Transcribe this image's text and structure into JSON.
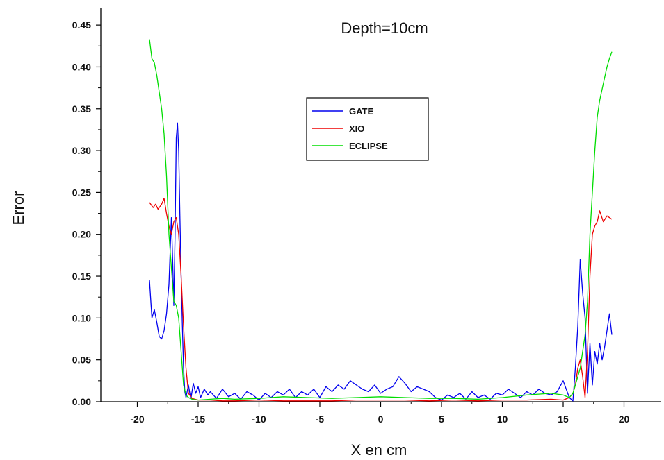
{
  "chart_data": {
    "type": "line",
    "title": "Depth=10cm",
    "xlabel": "X en cm",
    "ylabel": "Error",
    "xlim": [
      -23,
      23
    ],
    "ylim": [
      0,
      0.47
    ],
    "xticks": [
      -20,
      -15,
      -10,
      -5,
      0,
      5,
      10,
      15,
      20
    ],
    "xtick_labels": [
      "-20",
      "-15",
      "-10",
      "-5",
      "0",
      "5",
      "10",
      "15",
      "20"
    ],
    "yticks": [
      0.0,
      0.05,
      0.1,
      0.15,
      0.2,
      0.25,
      0.3,
      0.35,
      0.4,
      0.45
    ],
    "ytick_labels": [
      "0.00",
      "0.05",
      "0.10",
      "0.15",
      "0.20",
      "0.25",
      "0.30",
      "0.35",
      "0.40",
      "0.45"
    ],
    "grid": false,
    "legend_position": "top-center",
    "series": [
      {
        "name": "GATE",
        "color": "#0000ee",
        "x": [
          -19,
          -18.8,
          -18.6,
          -18.4,
          -18.2,
          -18,
          -17.8,
          -17.6,
          -17.4,
          -17.2,
          -17.1,
          -17,
          -16.9,
          -16.8,
          -16.7,
          -16.6,
          -16.5,
          -16.4,
          -16.3,
          -16.2,
          -16.1,
          -16,
          -15.8,
          -15.6,
          -15.4,
          -15.2,
          -15,
          -14.8,
          -14.5,
          -14.2,
          -14,
          -13.5,
          -13,
          -12.5,
          -12,
          -11.5,
          -11,
          -10.5,
          -10,
          -9.5,
          -9,
          -8.5,
          -8,
          -7.5,
          -7,
          -6.5,
          -6,
          -5.5,
          -5,
          -4.5,
          -4,
          -3.5,
          -3,
          -2.5,
          -2,
          -1.5,
          -1,
          -0.5,
          0,
          0.5,
          1,
          1.5,
          2,
          2.5,
          3,
          3.5,
          4,
          4.5,
          5,
          5.5,
          6,
          6.5,
          7,
          7.5,
          8,
          8.5,
          9,
          9.5,
          10,
          10.5,
          11,
          11.5,
          12,
          12.5,
          13,
          13.5,
          14,
          14.5,
          15,
          15.5,
          15.8,
          16,
          16.2,
          16.4,
          16.6,
          16.8,
          17,
          17.2,
          17.4,
          17.6,
          17.8,
          18,
          18.2,
          18.4,
          18.6,
          18.8,
          19
        ],
        "y": [
          0.145,
          0.1,
          0.11,
          0.095,
          0.078,
          0.075,
          0.085,
          0.105,
          0.14,
          0.22,
          0.17,
          0.115,
          0.2,
          0.315,
          0.333,
          0.3,
          0.22,
          0.15,
          0.09,
          0.04,
          0.012,
          0.005,
          0.02,
          0.003,
          0.022,
          0.01,
          0.018,
          0.005,
          0.015,
          0.008,
          0.012,
          0.004,
          0.015,
          0.006,
          0.01,
          0.003,
          0.012,
          0.008,
          0.002,
          0.01,
          0.005,
          0.012,
          0.008,
          0.015,
          0.005,
          0.012,
          0.008,
          0.015,
          0.005,
          0.018,
          0.012,
          0.02,
          0.015,
          0.025,
          0.02,
          0.015,
          0.012,
          0.02,
          0.01,
          0.015,
          0.018,
          0.03,
          0.022,
          0.012,
          0.018,
          0.015,
          0.012,
          0.005,
          0.002,
          0.008,
          0.005,
          0.01,
          0.003,
          0.012,
          0.005,
          0.008,
          0.003,
          0.01,
          0.008,
          0.015,
          0.01,
          0.005,
          0.012,
          0.008,
          0.015,
          0.01,
          0.008,
          0.012,
          0.025,
          0.005,
          0.001,
          0.04,
          0.09,
          0.17,
          0.13,
          0.1,
          0.01,
          0.07,
          0.02,
          0.06,
          0.045,
          0.07,
          0.05,
          0.065,
          0.085,
          0.105,
          0.08
        ]
      },
      {
        "name": "XIO",
        "color": "#ee0000",
        "x": [
          -19,
          -18.7,
          -18.5,
          -18.3,
          -18,
          -17.8,
          -17.6,
          -17.4,
          -17.2,
          -17,
          -16.8,
          -16.6,
          -16.4,
          -16.2,
          -16,
          -15.8,
          -15.5,
          -15,
          -14,
          -13,
          -12,
          -10,
          -8,
          -6,
          -4,
          -2,
          0,
          2,
          4,
          6,
          8,
          10,
          12,
          14,
          15,
          15.5,
          15.8,
          16,
          16.2,
          16.4,
          16.6,
          16.8,
          17,
          17.2,
          17.4,
          17.6,
          17.8,
          18,
          18.3,
          18.6,
          19
        ],
        "y": [
          0.238,
          0.232,
          0.236,
          0.23,
          0.236,
          0.243,
          0.225,
          0.21,
          0.2,
          0.215,
          0.22,
          0.2,
          0.15,
          0.09,
          0.04,
          0.01,
          0.004,
          0.002,
          0.002,
          0.001,
          0.001,
          0.002,
          0.001,
          0.001,
          0.001,
          0.002,
          0.002,
          0.002,
          0.001,
          0.002,
          0.001,
          0.002,
          0.002,
          0.003,
          0.002,
          0.005,
          0.01,
          0.02,
          0.04,
          0.05,
          0.03,
          0.005,
          0.06,
          0.15,
          0.2,
          0.21,
          0.215,
          0.228,
          0.215,
          0.222,
          0.218
        ]
      },
      {
        "name": "ECLIPSE",
        "color": "#00dd00",
        "x": [
          -19,
          -18.8,
          -18.6,
          -18.4,
          -18.2,
          -18,
          -17.8,
          -17.6,
          -17.4,
          -17.2,
          -17,
          -16.8,
          -16.6,
          -16.4,
          -16.2,
          -16,
          -15.8,
          -15.5,
          -15,
          -14,
          -13,
          -12,
          -10,
          -8,
          -6,
          -4,
          -2,
          0,
          2,
          4,
          6,
          8,
          10,
          12,
          14,
          15,
          15.5,
          15.8,
          16,
          16.2,
          16.4,
          16.6,
          16.8,
          17,
          17.2,
          17.4,
          17.6,
          17.8,
          18,
          18.3,
          18.6,
          18.8,
          19
        ],
        "y": [
          0.433,
          0.41,
          0.405,
          0.39,
          0.37,
          0.35,
          0.32,
          0.27,
          0.2,
          0.16,
          0.12,
          0.115,
          0.1,
          0.06,
          0.02,
          0.008,
          0.005,
          0.003,
          0.002,
          0.003,
          0.004,
          0.003,
          0.004,
          0.006,
          0.005,
          0.004,
          0.005,
          0.006,
          0.005,
          0.004,
          0.004,
          0.003,
          0.005,
          0.008,
          0.01,
          0.008,
          0.005,
          0.01,
          0.02,
          0.03,
          0.04,
          0.06,
          0.08,
          0.12,
          0.2,
          0.25,
          0.3,
          0.34,
          0.36,
          0.38,
          0.4,
          0.41,
          0.418
        ]
      }
    ]
  }
}
